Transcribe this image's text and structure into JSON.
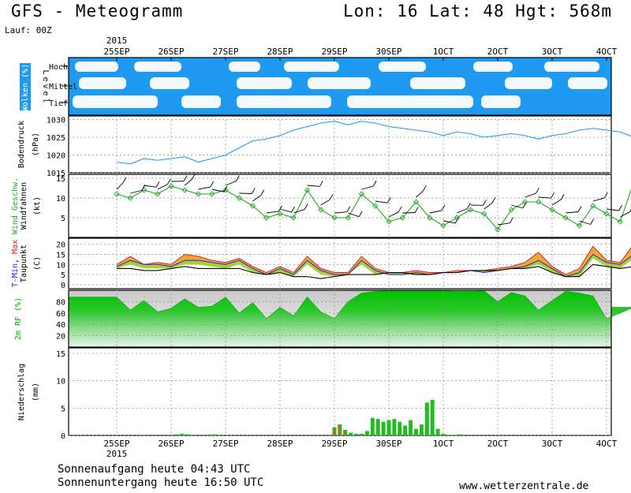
{
  "header": {
    "title": "GFS - Meteogramm",
    "location": "Lon: 16 Lat: 48 Hgt: 568m",
    "run": "Lauf: 00Z"
  },
  "footer": {
    "sunrise": "Sonnenaufgang heute 04:43 UTC",
    "sunset": "Sonnenuntergang heute 16:50 UTC",
    "url": "www.wetterzentrale.de"
  },
  "time_axis": {
    "year": "2015",
    "labels": [
      "25SEP",
      "26SEP",
      "27SEP",
      "28SEP",
      "29SEP",
      "30SEP",
      "1OCT",
      "2OCT",
      "3OCT",
      "4OCT"
    ]
  },
  "colors": {
    "sky": "#1e9bf0",
    "pressure": "#1e9bf0",
    "wind_speed": "#22aa22",
    "t_min": "#2222ee",
    "t_max": "#dd2222",
    "rh": "#00c800",
    "precip": "#22bb22"
  },
  "chart_data": [
    {
      "type": "area",
      "panel": "clouds",
      "ylabel": "Wolken (%)",
      "level_caption": "Level",
      "levels": [
        "Hoch",
        "Mittel",
        "Tief"
      ]
    },
    {
      "type": "line",
      "panel": "pressure",
      "ylabel": "Bodendruck (hPa)",
      "ylim": [
        1015,
        1031
      ],
      "yticks": [
        1015,
        1020,
        1025,
        1030
      ],
      "x_days": [
        0,
        0.25,
        0.5,
        0.75,
        1,
        1.25,
        1.5,
        1.75,
        2,
        2.25,
        2.5,
        2.75,
        3,
        3.25,
        3.5,
        3.75,
        4,
        4.25,
        4.5,
        4.75,
        5,
        5.25,
        5.5,
        5.75,
        6,
        6.25,
        6.5,
        6.75,
        7,
        7.25,
        7.5,
        7.75,
        8,
        8.25,
        8.5,
        8.75,
        9,
        9.25,
        9.5,
        9.75,
        10
      ],
      "values": [
        1018,
        1017.5,
        1019,
        1018.5,
        1019,
        1019.5,
        1018,
        1019,
        1020,
        1022,
        1024,
        1024.5,
        1025.5,
        1027,
        1028,
        1029,
        1029.5,
        1028.5,
        1029.5,
        1029,
        1028,
        1027.5,
        1027,
        1026.5,
        1025.5,
        1026.5,
        1026,
        1025,
        1025.5,
        1026,
        1025.5,
        1024.5,
        1025.5,
        1026,
        1027,
        1027.5,
        1027,
        1026.5,
        1025,
        1023,
        1022.5
      ]
    },
    {
      "type": "line",
      "panel": "wind",
      "ylabel": "Wind Geschw. Windfahnen (kt)",
      "ylim": [
        0,
        16
      ],
      "yticks": [
        5,
        10,
        15
      ],
      "x_days": [
        0,
        0.25,
        0.5,
        0.75,
        1,
        1.25,
        1.5,
        1.75,
        2,
        2.25,
        2.5,
        2.75,
        3,
        3.25,
        3.5,
        3.75,
        4,
        4.25,
        4.5,
        4.75,
        5,
        5.25,
        5.5,
        5.75,
        6,
        6.25,
        6.5,
        6.75,
        7,
        7.25,
        7.5,
        7.75,
        8,
        8.25,
        8.5,
        8.75,
        9,
        9.25,
        9.5,
        9.75,
        10
      ],
      "values": [
        11,
        10,
        12,
        11,
        13,
        12,
        11,
        11,
        12,
        10,
        8,
        5,
        6,
        5,
        12,
        7,
        5,
        5,
        11,
        8,
        4,
        5,
        9,
        5,
        3,
        5,
        7,
        6,
        2,
        7,
        9,
        9,
        7,
        5,
        3,
        8,
        6,
        4,
        14,
        9,
        7
      ]
    },
    {
      "type": "line",
      "panel": "temperature",
      "ylabel": "T-Min, Max Taupunkt (C)",
      "ylim": [
        -2,
        23
      ],
      "yticks": [
        0,
        5,
        10,
        15,
        20
      ],
      "x_days": [
        0,
        0.25,
        0.5,
        0.75,
        1,
        1.25,
        1.5,
        1.75,
        2,
        2.25,
        2.5,
        2.75,
        3,
        3.25,
        3.5,
        3.75,
        4,
        4.25,
        4.5,
        4.75,
        5,
        5.25,
        5.5,
        5.75,
        6,
        6.25,
        6.5,
        6.75,
        7,
        7.25,
        7.5,
        7.75,
        8,
        8.25,
        8.5,
        8.75,
        9,
        9.25,
        9.5,
        9.75,
        10
      ],
      "series": [
        {
          "name": "T-Max",
          "values": [
            10,
            14,
            10,
            11,
            10,
            15,
            14,
            12,
            11,
            13,
            9,
            6,
            9,
            6,
            14,
            8,
            6,
            6,
            14,
            8,
            6,
            6,
            7,
            6,
            6,
            7,
            7,
            7,
            8,
            9,
            11,
            16,
            9,
            5,
            8,
            19,
            12,
            11,
            20,
            19,
            14
          ]
        },
        {
          "name": "T-Min",
          "values": [
            9,
            12,
            10,
            10,
            9,
            12,
            12,
            11,
            10,
            12,
            8,
            5,
            8,
            5,
            12,
            7,
            5,
            5,
            12,
            7,
            5,
            5,
            6,
            5,
            6,
            6,
            7,
            6,
            7,
            8,
            9,
            12,
            8,
            4,
            6,
            15,
            11,
            10,
            15,
            15,
            13
          ]
        },
        {
          "name": "Taupunkt",
          "values": [
            8,
            8,
            7,
            7,
            8,
            9,
            8,
            8,
            8,
            8,
            6,
            5,
            6,
            4,
            4,
            3,
            4,
            5,
            5,
            5,
            6,
            6,
            5,
            5,
            6,
            6,
            7,
            7,
            7,
            8,
            8,
            9,
            6,
            4,
            4,
            10,
            9,
            8,
            9,
            7,
            6
          ]
        }
      ]
    },
    {
      "type": "area",
      "panel": "humidity",
      "ylabel": "2m RF (%)",
      "ylim": [
        0,
        100
      ],
      "yticks": [
        20,
        40,
        60,
        80
      ],
      "x_days": [
        0,
        0.25,
        0.5,
        0.75,
        1,
        1.25,
        1.5,
        1.75,
        2,
        2.25,
        2.5,
        2.75,
        3,
        3.25,
        3.5,
        3.75,
        4,
        4.25,
        4.5,
        4.75,
        5,
        5.25,
        5.5,
        5.75,
        6,
        6.25,
        6.5,
        6.75,
        7,
        7.25,
        7.5,
        7.75,
        8,
        8.25,
        8.5,
        8.75,
        9,
        9.25,
        9.5,
        9.75,
        10
      ],
      "values": [
        88,
        65,
        82,
        62,
        68,
        85,
        70,
        72,
        88,
        60,
        78,
        50,
        70,
        55,
        88,
        62,
        50,
        80,
        95,
        98,
        99,
        99,
        99,
        99,
        99,
        98,
        98,
        99,
        80,
        96,
        90,
        65,
        82,
        98,
        95,
        90,
        50,
        60,
        70,
        62,
        70
      ]
    },
    {
      "type": "bar",
      "panel": "precipitation",
      "ylabel": "Niederschlag (mm)",
      "ylim": [
        0,
        16
      ],
      "yticks": [
        0,
        5,
        10,
        15
      ],
      "x_days": [
        0.5,
        1.1,
        1.2,
        1.3,
        1.7,
        1.8,
        4.0,
        4.1,
        4.2,
        4.3,
        4.4,
        4.5,
        4.6,
        4.7,
        4.8,
        4.9,
        5.0,
        5.1,
        5.2,
        5.3,
        5.4,
        5.5,
        5.6,
        5.7,
        5.8,
        5.9,
        6.0,
        6.1,
        6.2,
        6.3
      ],
      "values": [
        0.1,
        0.2,
        0.3,
        0.2,
        0.2,
        0.2,
        1.5,
        2.0,
        1.0,
        0.5,
        0.3,
        0.3,
        0.8,
        3.2,
        3.0,
        2.5,
        2.8,
        3.0,
        2.5,
        1.8,
        2.8,
        1.2,
        2.0,
        6.0,
        6.5,
        1.2,
        0.3,
        0.1,
        0.1,
        0.2
      ]
    }
  ]
}
